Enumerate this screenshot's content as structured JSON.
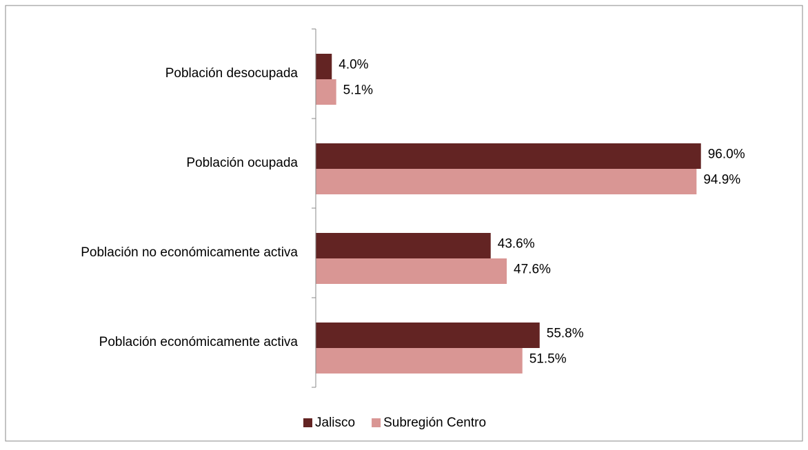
{
  "chart_data": {
    "type": "barh",
    "categories": [
      "Población desocupada",
      "Población ocupada",
      "Población no económicamente activa",
      "Población económicamente activa"
    ],
    "series": [
      {
        "name": "Jalisco",
        "color": "#632423",
        "values": [
          4.0,
          96.0,
          43.6,
          55.8
        ],
        "value_labels": [
          "4.0%",
          "96.0%",
          "43.6%",
          "55.8%"
        ]
      },
      {
        "name": "Subregión Centro",
        "color": "#d99694",
        "values": [
          5.1,
          94.9,
          47.6,
          51.5
        ],
        "value_labels": [
          "5.1%",
          "94.9%",
          "47.6%",
          "51.5%"
        ]
      }
    ],
    "xlim": [
      0,
      100
    ],
    "legend": "bottom"
  }
}
